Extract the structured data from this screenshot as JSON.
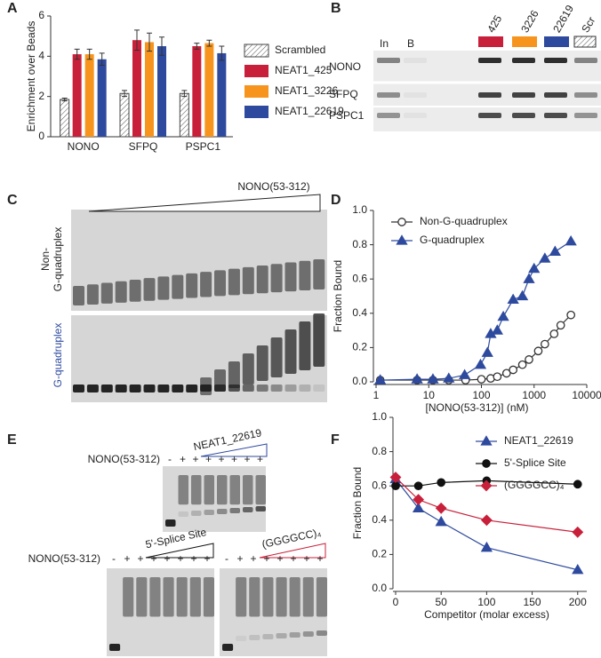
{
  "panel_labels": [
    "A",
    "B",
    "C",
    "D",
    "E",
    "F"
  ],
  "chart_data": [
    {
      "type": "bar",
      "ylabel": "Enrichment over Beads",
      "categories": [
        "NONO",
        "SFPQ",
        "PSPC1"
      ],
      "ylim": [
        0,
        6
      ],
      "yticks": [
        0,
        2,
        4,
        6
      ],
      "series": [
        {
          "name": "Scrambled",
          "color": "#ffffff",
          "pattern": "hatch",
          "values": [
            1.85,
            2.15,
            2.15
          ],
          "errors": [
            0.07,
            0.15,
            0.15
          ]
        },
        {
          "name": "NEAT1_425",
          "color": "#c8203a",
          "values": [
            4.1,
            4.8,
            4.5
          ],
          "errors": [
            0.25,
            0.5,
            0.15
          ]
        },
        {
          "name": "NEAT1_3226",
          "color": "#f7941d",
          "values": [
            4.1,
            4.7,
            4.65
          ],
          "errors": [
            0.25,
            0.45,
            0.15
          ]
        },
        {
          "name": "NEAT1_22619",
          "color": "#2e4a9e",
          "values": [
            3.85,
            4.5,
            4.15
          ],
          "errors": [
            0.3,
            0.45,
            0.35
          ]
        }
      ]
    },
    {
      "type": "line",
      "xscale": "log",
      "xlabel": "[NONO(53-312)] (nM)",
      "ylabel": "Fraction Bound",
      "xlim": [
        1,
        10000
      ],
      "xticks": [
        1,
        10,
        100,
        1000,
        10000
      ],
      "ylim": [
        0,
        1
      ],
      "yticks": [
        {
          "value": 0,
          "label": "0.0"
        },
        0.2,
        0.4,
        0.6,
        0.8,
        {
          "value": 1,
          "label": "1.0"
        }
      ],
      "series": [
        {
          "name": "Non-G-quadruplex",
          "color": "#333333",
          "marker": "circle",
          "open": true,
          "x": [
            1.2,
            6,
            12,
            24,
            50,
            100,
            150,
            200,
            300,
            400,
            600,
            800,
            1200,
            1600,
            2400,
            3200,
            5000
          ],
          "values": [
            0.01,
            0.01,
            0.01,
            0.01,
            0.01,
            0.015,
            0.02,
            0.03,
            0.05,
            0.07,
            0.1,
            0.13,
            0.18,
            0.22,
            0.28,
            0.33,
            0.39
          ]
        },
        {
          "name": "G-quadruplex",
          "color": "#2e4a9e",
          "marker": "triangle",
          "x": [
            1.2,
            6,
            12,
            24,
            48,
            96,
            130,
            150,
            200,
            260,
            400,
            600,
            800,
            1000,
            1600,
            2500,
            5000
          ],
          "values": [
            0.01,
            0.015,
            0.015,
            0.02,
            0.04,
            0.1,
            0.17,
            0.28,
            0.3,
            0.38,
            0.48,
            0.5,
            0.6,
            0.66,
            0.72,
            0.76,
            0.82
          ]
        }
      ]
    },
    {
      "type": "line",
      "xlabel": "Competitor (molar excess)",
      "ylabel": "Fraction Bound",
      "xlim": [
        0,
        210
      ],
      "xticks": [
        0,
        50,
        100,
        150,
        200
      ],
      "ylim": [
        0,
        1
      ],
      "yticks": [
        {
          "value": 0,
          "label": "0.0"
        },
        0.2,
        0.4,
        0.6,
        0.8,
        {
          "value": 1,
          "label": "1.0"
        }
      ],
      "series": [
        {
          "name": "NEAT1_22619",
          "color": "#2e4a9e",
          "marker": "triangle",
          "x": [
            0,
            25,
            50,
            100,
            200
          ],
          "values": [
            0.64,
            0.47,
            0.39,
            0.24,
            0.11
          ]
        },
        {
          "name": "5'-Splice Site",
          "color": "#111111",
          "marker": "circle",
          "x": [
            0,
            25,
            50,
            100,
            200
          ],
          "values": [
            0.6,
            0.6,
            0.62,
            0.63,
            0.61
          ]
        },
        {
          "name": "(GGGGCC)₄",
          "color": "#c8203a",
          "marker": "diamond",
          "x": [
            0,
            25,
            50,
            100,
            200
          ],
          "values": [
            0.65,
            0.52,
            0.47,
            0.4,
            0.33
          ]
        }
      ]
    }
  ],
  "blot_b": {
    "lanes": [
      "In",
      "B",
      "425",
      "3226",
      "22619",
      "Scr"
    ],
    "rows": [
      "NONO",
      "SFPQ",
      "PSPC1"
    ]
  },
  "gel_c": {
    "titrant": "NONO(53-312)",
    "top_label": [
      "Non-",
      "G-quadruplex"
    ],
    "bottom_label": "G-quadruplex"
  },
  "gel_e": {
    "top": {
      "protein": "NONO(53-312)",
      "competitor": "NEAT1_22619",
      "lanes": [
        "-",
        "+",
        "+",
        "+",
        "+",
        "+",
        "+",
        "+"
      ]
    },
    "left": {
      "protein": "NONO(53-312)",
      "competitor": "5'-Splice Site",
      "lanes": [
        "-",
        "+",
        "+",
        "+",
        "+",
        "+",
        "+",
        "+"
      ]
    },
    "right": {
      "competitor": "(GGGGCC)₄",
      "lanes": [
        "-",
        "+",
        "+",
        "+",
        "+",
        "+",
        "+",
        "+"
      ]
    }
  }
}
